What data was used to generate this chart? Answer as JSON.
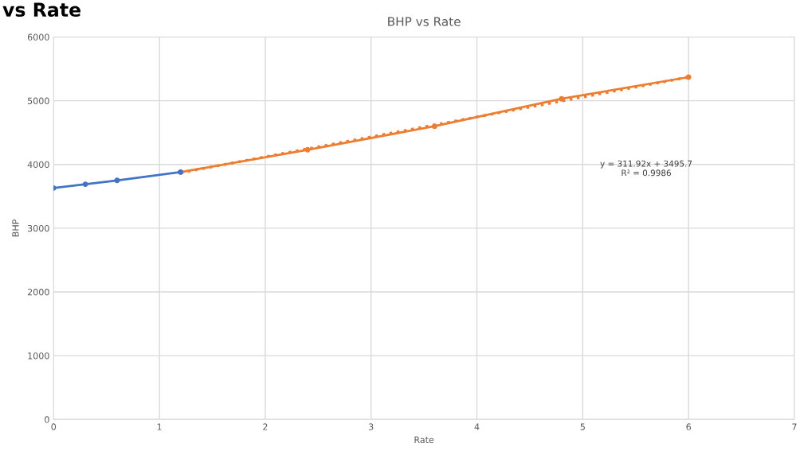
{
  "chart_data": {
    "type": "line",
    "title": "BHP vs Rate",
    "xlabel": "Rate",
    "ylabel": "BHP",
    "annotations": [
      "vs Rate",
      "y = 311.92x + 3495.7\nR² = 0.9986"
    ],
    "series": [
      {
        "color": "#4472c4",
        "x": [
          0,
          0.3,
          0.6,
          1.2
        ],
        "values": [
          3630,
          3690,
          3750,
          3880
        ],
        "marker": "circle",
        "line_style": "solid"
      },
      {
        "color": "#ed7d31",
        "x": [
          1.2,
          2.4,
          3.6,
          4.8,
          6
        ],
        "values": [
          3880,
          4230,
          4600,
          5030,
          5370
        ],
        "marker": "circle",
        "line_style": "solid"
      },
      {
        "color": "#ed7d31",
        "x": [
          1.2,
          6
        ],
        "values": [
          3870,
          5370
        ],
        "marker": "none",
        "line_style": "dotted"
      }
    ],
    "xlim": [
      0,
      7
    ],
    "xticks": [
      0,
      1,
      2,
      3,
      4,
      5,
      6,
      7
    ],
    "ylim": [
      0,
      6000
    ],
    "yticks": [
      0,
      1000,
      2000,
      3000,
      4000,
      5000,
      6000
    ],
    "grid": true,
    "legend": false
  }
}
